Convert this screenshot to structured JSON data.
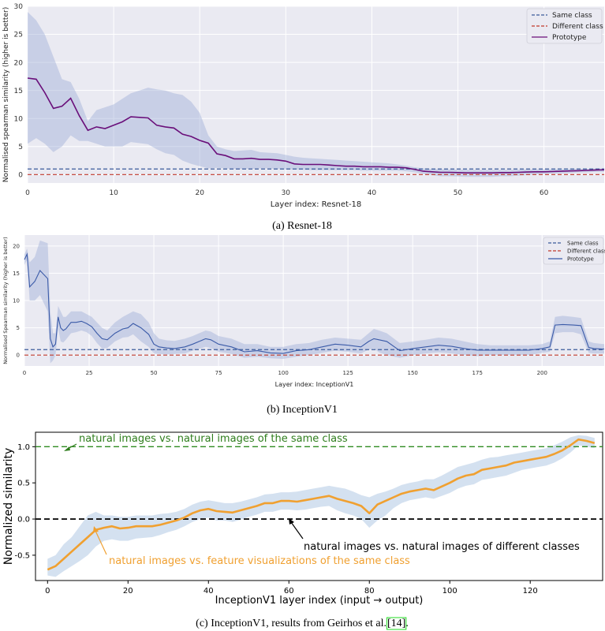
{
  "chart_data": [
    {
      "id": "a",
      "type": "line",
      "caption": "(a) Resnet-18",
      "xlabel": "Layer index: Resnet-18",
      "ylabel": "Normalised spearman similarity (higher is better)",
      "xlim": [
        0,
        67
      ],
      "ylim": [
        -1.5,
        30
      ],
      "xticks": [
        0,
        10,
        20,
        30,
        40,
        50,
        60
      ],
      "yticks": [
        0,
        5,
        10,
        15,
        20,
        25,
        30
      ],
      "legend": {
        "position": "top-right",
        "entries": [
          "Same class",
          "Different class",
          "Prototype"
        ]
      },
      "series": [
        {
          "name": "Same class",
          "style": "dashed",
          "color": "#3b5b9a",
          "y_constant": 1.0
        },
        {
          "name": "Different class",
          "style": "dashed",
          "color": "#c0392b",
          "y_constant": 0.0
        },
        {
          "name": "Prototype",
          "style": "solid",
          "color": "#6a0f7a",
          "x": [
            0,
            1,
            2,
            3,
            4,
            5,
            6,
            7,
            8,
            9,
            10,
            11,
            12,
            13,
            14,
            15,
            16,
            17,
            18,
            19,
            20,
            21,
            22,
            23,
            24,
            25,
            26,
            27,
            28,
            29,
            30,
            31,
            32,
            33,
            34,
            35,
            36,
            37,
            38,
            39,
            40,
            41,
            42,
            43,
            44,
            45,
            46,
            47,
            48,
            49,
            50,
            51,
            52,
            53,
            54,
            55,
            56,
            57,
            58,
            59,
            60,
            61,
            62,
            63,
            64,
            65,
            66,
            67
          ],
          "y": [
            17.2,
            17.0,
            14.6,
            11.8,
            12.2,
            13.6,
            10.5,
            7.9,
            8.5,
            8.2,
            8.8,
            9.4,
            10.3,
            10.2,
            10.1,
            8.8,
            8.5,
            8.3,
            7.2,
            6.8,
            6.1,
            5.6,
            3.7,
            3.4,
            2.8,
            2.8,
            2.9,
            2.7,
            2.7,
            2.6,
            2.4,
            1.9,
            1.8,
            1.8,
            1.8,
            1.7,
            1.6,
            1.5,
            1.5,
            1.4,
            1.4,
            1.4,
            1.3,
            1.3,
            1.2,
            0.9,
            0.6,
            0.5,
            0.4,
            0.4,
            0.35,
            0.3,
            0.3,
            0.3,
            0.3,
            0.35,
            0.35,
            0.4,
            0.45,
            0.5,
            0.5,
            0.55,
            0.6,
            0.65,
            0.7,
            0.75,
            0.8,
            0.85
          ],
          "band_upper": [
            29,
            27.5,
            25,
            21,
            17,
            16.5,
            13.5,
            9.5,
            11.5,
            12,
            12.5,
            13.5,
            14.5,
            15,
            15.5,
            15.2,
            15,
            14.5,
            14.2,
            13,
            11,
            7,
            5,
            4.5,
            4.2,
            4.3,
            4.4,
            4.0,
            3.9,
            3.8,
            3.5,
            3.2,
            3.0,
            2.9,
            2.8,
            2.7,
            2.6,
            2.5,
            2.4,
            2.3,
            2.2,
            2.1,
            2.0,
            1.8,
            1.6,
            1.3,
            1.1,
            1.0,
            0.95,
            0.9,
            0.85,
            0.85,
            0.8,
            0.8,
            0.8,
            0.8,
            0.8,
            0.85,
            0.9,
            0.9,
            0.9,
            0.95,
            0.95,
            1.0,
            1.0,
            1.0,
            1.1,
            1.1
          ],
          "band_lower": [
            5.5,
            6.5,
            5.5,
            4,
            5,
            7,
            6,
            6,
            5.5,
            5,
            5,
            5,
            5.8,
            5.6,
            5.4,
            4.5,
            3.8,
            3.5,
            2.5,
            1.9,
            1.5,
            1.1,
            1.2,
            1.1,
            1.0,
            1.0,
            1.0,
            1.1,
            1.1,
            1.0,
            0.9,
            0.9,
            0.85,
            0.8,
            0.8,
            0.8,
            0.8,
            0.8,
            0.8,
            0.7,
            0.7,
            0.7,
            0.7,
            0.7,
            0.6,
            0.4,
            0.1,
            -0.1,
            -0.3,
            -0.3,
            -0.35,
            -0.4,
            -0.4,
            -0.4,
            -0.4,
            -0.3,
            -0.3,
            -0.2,
            -0.1,
            0.0,
            0.1,
            0.2,
            0.2,
            0.3,
            0.4,
            0.4,
            0.5,
            0.5
          ]
        }
      ]
    },
    {
      "id": "b",
      "type": "line",
      "caption": "(b) InceptionV1",
      "xlabel": "Layer index: InceptionV1",
      "ylabel": "Normalised Spearman similarity (higher is better)",
      "xlim": [
        0,
        224
      ],
      "ylim": [
        -2,
        22
      ],
      "xticks": [
        0,
        25,
        50,
        75,
        100,
        125,
        150,
        175,
        200
      ],
      "yticks": [
        0,
        5,
        10,
        15,
        20
      ],
      "legend": {
        "position": "top-right",
        "entries": [
          "Same class",
          "Different class",
          "Prototype"
        ]
      },
      "series": [
        {
          "name": "Same class",
          "style": "dashed",
          "color": "#3b5b9a",
          "y_constant": 1.0
        },
        {
          "name": "Different class",
          "style": "dashed",
          "color": "#c0392b",
          "y_constant": 0.0
        },
        {
          "name": "Prototype",
          "style": "solid",
          "color": "#3b5ba8",
          "x": [
            0,
            1,
            2,
            4,
            6,
            9,
            10,
            11,
            12,
            13,
            14,
            15,
            16,
            18,
            20,
            22,
            24,
            26,
            28,
            30,
            32,
            35,
            38,
            40,
            42,
            45,
            48,
            50,
            52,
            55,
            58,
            62,
            65,
            70,
            72,
            75,
            80,
            85,
            90,
            95,
            100,
            105,
            110,
            115,
            120,
            125,
            130,
            133,
            135,
            137,
            140,
            145,
            150,
            155,
            160,
            165,
            170,
            175,
            180,
            185,
            190,
            195,
            200,
            203,
            205,
            208,
            212,
            215,
            218,
            220,
            224
          ],
          "y": [
            17.5,
            18.5,
            12.5,
            13.5,
            15.5,
            14,
            3,
            1.5,
            2,
            7,
            5,
            4.5,
            4.8,
            6,
            6,
            6.2,
            5.8,
            5.2,
            4,
            3,
            2.8,
            4,
            4.8,
            5,
            5.8,
            5,
            3.8,
            2,
            1.5,
            1.3,
            1.2,
            1.5,
            2,
            3,
            2.8,
            2,
            1.5,
            0.6,
            0.8,
            0.4,
            0.3,
            0.8,
            1.0,
            1.5,
            2,
            1.8,
            1.5,
            2.5,
            3.0,
            2.8,
            2.5,
            0.8,
            1.2,
            1.5,
            1.8,
            1.6,
            1.2,
            0.9,
            0.9,
            0.9,
            0.9,
            0.9,
            1.2,
            1.5,
            5.5,
            5.6,
            5.5,
            5.4,
            1.4,
            1.2,
            1.1
          ],
          "band_upper": [
            18.5,
            19.5,
            17,
            18,
            21,
            20.5,
            8,
            4,
            4,
            9,
            8,
            7,
            7,
            8,
            8,
            8,
            7.5,
            7,
            6,
            5,
            4.5,
            6,
            7,
            7.5,
            8,
            7.5,
            6,
            4,
            3,
            2.7,
            2.6,
            3,
            3.5,
            4.5,
            4.3,
            3.5,
            3,
            2,
            2,
            1.5,
            1.5,
            2,
            2.2,
            2.8,
            3.2,
            3,
            2.8,
            4,
            4.8,
            4.5,
            4,
            2.2,
            2.5,
            2.8,
            3.2,
            3,
            2.5,
            2,
            1.8,
            1.8,
            1.8,
            1.8,
            2,
            2.5,
            7,
            7.2,
            7,
            6.8,
            2.5,
            2.2,
            2.0
          ],
          "band_lower": [
            16.5,
            17.5,
            10,
            10,
            11,
            8,
            -1.5,
            -1,
            0,
            5,
            2.5,
            2.3,
            2.8,
            4,
            4.2,
            4.5,
            4.2,
            3.5,
            2.2,
            1.2,
            1.3,
            2.5,
            3.2,
            3.3,
            3.8,
            2.5,
            1.5,
            0.3,
            0.2,
            0.1,
            0.2,
            0.3,
            0.8,
            1.5,
            1.3,
            0.6,
            0.2,
            -0.5,
            -0.3,
            -0.6,
            -0.7,
            -0.3,
            0,
            0.4,
            0.8,
            0.6,
            0.3,
            1,
            1.2,
            0.5,
            0,
            -0.5,
            0,
            0.3,
            0.5,
            0.3,
            0,
            -0.2,
            0,
            0,
            0,
            0,
            0.4,
            0.6,
            4,
            4.2,
            4.2,
            3.8,
            0.4,
            0.3,
            0.3
          ]
        }
      ]
    },
    {
      "id": "c",
      "type": "line",
      "caption": "(c) InceptionV1, results from Geirhos et al.",
      "caption_ref": "[14]",
      "caption_end": ".",
      "xlabel": "InceptionV1 layer index (input → output)",
      "ylabel": "Normalized similarity",
      "xlim": [
        -3,
        138
      ],
      "ylim": [
        -0.85,
        1.2
      ],
      "xticks": [
        0,
        20,
        40,
        60,
        80,
        100,
        120
      ],
      "yticks": [
        -0.5,
        0.0,
        0.5,
        1.0
      ],
      "annotations": [
        "natural images vs. natural images of the same class",
        "natural images vs. natural images of different classes",
        "natural images vs. feature visualizations of the same class"
      ],
      "series": [
        {
          "name": "natural images vs. natural images of the same class",
          "style": "dashed",
          "color": "#2e8b20",
          "y_constant": 1.0
        },
        {
          "name": "natural images vs. natural images of different classes",
          "style": "dashed",
          "color": "#111111",
          "y_constant": 0.0
        },
        {
          "name": "natural images vs. feature visualizations of the same class",
          "style": "solid",
          "color": "#f0a030",
          "x": [
            0,
            2,
            4,
            6,
            8,
            10,
            12,
            14,
            16,
            18,
            20,
            22,
            24,
            26,
            28,
            30,
            32,
            34,
            36,
            38,
            40,
            42,
            44,
            46,
            48,
            50,
            52,
            54,
            56,
            58,
            60,
            62,
            64,
            66,
            68,
            70,
            72,
            74,
            76,
            78,
            80,
            82,
            84,
            86,
            88,
            90,
            92,
            94,
            96,
            98,
            100,
            102,
            104,
            106,
            108,
            110,
            112,
            114,
            116,
            118,
            120,
            122,
            124,
            126,
            128,
            130,
            132,
            134,
            136
          ],
          "y": [
            -0.7,
            -0.65,
            -0.55,
            -0.45,
            -0.35,
            -0.25,
            -0.15,
            -0.12,
            -0.1,
            -0.13,
            -0.12,
            -0.1,
            -0.1,
            -0.1,
            -0.08,
            -0.05,
            -0.02,
            0.02,
            0.08,
            0.12,
            0.14,
            0.11,
            0.1,
            0.09,
            0.12,
            0.15,
            0.18,
            0.22,
            0.22,
            0.25,
            0.25,
            0.24,
            0.26,
            0.28,
            0.3,
            0.32,
            0.28,
            0.25,
            0.22,
            0.18,
            0.08,
            0.2,
            0.25,
            0.3,
            0.35,
            0.38,
            0.4,
            0.42,
            0.4,
            0.45,
            0.5,
            0.56,
            0.6,
            0.62,
            0.68,
            0.7,
            0.72,
            0.74,
            0.78,
            0.8,
            0.82,
            0.84,
            0.86,
            0.9,
            0.95,
            1.02,
            1.1,
            1.08,
            1.05
          ],
          "band_upper": [
            -0.55,
            -0.5,
            -0.35,
            -0.25,
            -0.1,
            0.05,
            0.1,
            0.05,
            0.05,
            0.03,
            0.03,
            0.05,
            0.05,
            0.05,
            0.07,
            0.08,
            0.1,
            0.14,
            0.2,
            0.24,
            0.26,
            0.24,
            0.22,
            0.22,
            0.24,
            0.27,
            0.3,
            0.34,
            0.35,
            0.37,
            0.37,
            0.38,
            0.4,
            0.42,
            0.44,
            0.46,
            0.44,
            0.42,
            0.38,
            0.33,
            0.3,
            0.35,
            0.38,
            0.42,
            0.47,
            0.5,
            0.52,
            0.55,
            0.55,
            0.6,
            0.66,
            0.72,
            0.75,
            0.78,
            0.82,
            0.85,
            0.86,
            0.88,
            0.9,
            0.92,
            0.94,
            0.96,
            0.98,
            1.02,
            1.07,
            1.13,
            1.16,
            1.15,
            1.12
          ],
          "band_lower": [
            -0.78,
            -0.8,
            -0.72,
            -0.65,
            -0.58,
            -0.5,
            -0.38,
            -0.3,
            -0.28,
            -0.3,
            -0.3,
            -0.27,
            -0.26,
            -0.25,
            -0.22,
            -0.18,
            -0.15,
            -0.1,
            -0.04,
            0.0,
            0.02,
            -0.02,
            -0.02,
            -0.04,
            -0.01,
            0.03,
            0.06,
            0.1,
            0.1,
            0.13,
            0.13,
            0.12,
            0.13,
            0.15,
            0.17,
            0.18,
            0.12,
            0.08,
            0.05,
            0.0,
            -0.12,
            -0.02,
            0.05,
            0.15,
            0.22,
            0.26,
            0.28,
            0.3,
            0.28,
            0.32,
            0.36,
            0.42,
            0.46,
            0.48,
            0.54,
            0.56,
            0.58,
            0.6,
            0.64,
            0.68,
            0.7,
            0.72,
            0.74,
            0.78,
            0.84,
            0.92,
            1.02,
            1.0,
            0.98
          ]
        }
      ]
    }
  ]
}
